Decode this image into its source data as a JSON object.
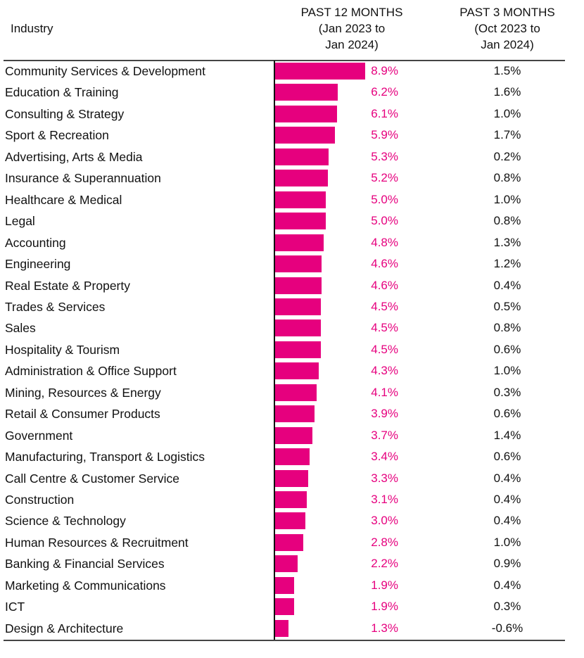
{
  "chart_data": {
    "type": "bar",
    "orientation": "horizontal",
    "headers": {
      "industry": "Industry",
      "past12_line1": "PAST 12 MONTHS",
      "past12_line2": "(Jan 2023 to",
      "past12_line3": "Jan 2024)",
      "past3_line1": "PAST 3 MONTHS",
      "past3_line2": "(Oct 2023 to",
      "past3_line3": "Jan 2024)"
    },
    "bar_color": "#E6007E",
    "label_color": "#E6007E",
    "xlim": [
      0,
      9
    ],
    "rows": [
      {
        "industry": "Community Services & Development",
        "past12": 8.9,
        "past12_label": "8.9%",
        "past3_label": "1.5%"
      },
      {
        "industry": "Education & Training",
        "past12": 6.2,
        "past12_label": "6.2%",
        "past3_label": "1.6%"
      },
      {
        "industry": "Consulting & Strategy",
        "past12": 6.1,
        "past12_label": "6.1%",
        "past3_label": "1.0%"
      },
      {
        "industry": "Sport & Recreation",
        "past12": 5.9,
        "past12_label": "5.9%",
        "past3_label": "1.7%"
      },
      {
        "industry": "Advertising, Arts & Media",
        "past12": 5.3,
        "past12_label": "5.3%",
        "past3_label": "0.2%"
      },
      {
        "industry": "Insurance & Superannuation",
        "past12": 5.2,
        "past12_label": "5.2%",
        "past3_label": "0.8%"
      },
      {
        "industry": "Healthcare & Medical",
        "past12": 5.0,
        "past12_label": "5.0%",
        "past3_label": "1.0%"
      },
      {
        "industry": "Legal",
        "past12": 5.0,
        "past12_label": "5.0%",
        "past3_label": "0.8%"
      },
      {
        "industry": "Accounting",
        "past12": 4.8,
        "past12_label": "4.8%",
        "past3_label": "1.3%"
      },
      {
        "industry": "Engineering",
        "past12": 4.6,
        "past12_label": "4.6%",
        "past3_label": "1.2%"
      },
      {
        "industry": "Real Estate & Property",
        "past12": 4.6,
        "past12_label": "4.6%",
        "past3_label": "0.4%"
      },
      {
        "industry": "Trades & Services",
        "past12": 4.5,
        "past12_label": "4.5%",
        "past3_label": "0.5%"
      },
      {
        "industry": "Sales",
        "past12": 4.5,
        "past12_label": "4.5%",
        "past3_label": "0.8%"
      },
      {
        "industry": "Hospitality & Tourism",
        "past12": 4.5,
        "past12_label": "4.5%",
        "past3_label": "0.6%"
      },
      {
        "industry": "Administration & Office Support",
        "past12": 4.3,
        "past12_label": "4.3%",
        "past3_label": "1.0%"
      },
      {
        "industry": "Mining, Resources & Energy",
        "past12": 4.1,
        "past12_label": "4.1%",
        "past3_label": "0.3%"
      },
      {
        "industry": "Retail & Consumer Products",
        "past12": 3.9,
        "past12_label": "3.9%",
        "past3_label": "0.6%"
      },
      {
        "industry": "Government",
        "past12": 3.7,
        "past12_label": "3.7%",
        "past3_label": "1.4%"
      },
      {
        "industry": "Manufacturing, Transport & Logistics",
        "past12": 3.4,
        "past12_label": "3.4%",
        "past3_label": "0.6%"
      },
      {
        "industry": "Call Centre & Customer Service",
        "past12": 3.3,
        "past12_label": "3.3%",
        "past3_label": "0.4%"
      },
      {
        "industry": "Construction",
        "past12": 3.1,
        "past12_label": "3.1%",
        "past3_label": "0.4%"
      },
      {
        "industry": "Science & Technology",
        "past12": 3.0,
        "past12_label": "3.0%",
        "past3_label": "0.4%"
      },
      {
        "industry": "Human Resources & Recruitment",
        "past12": 2.8,
        "past12_label": "2.8%",
        "past3_label": "1.0%"
      },
      {
        "industry": "Banking & Financial Services",
        "past12": 2.2,
        "past12_label": "2.2%",
        "past3_label": "0.9%"
      },
      {
        "industry": "Marketing & Communications",
        "past12": 1.9,
        "past12_label": "1.9%",
        "past3_label": "0.4%"
      },
      {
        "industry": "ICT",
        "past12": 1.9,
        "past12_label": "1.9%",
        "past3_label": "0.3%"
      },
      {
        "industry": "Design & Architecture",
        "past12": 1.3,
        "past12_label": "1.3%",
        "past3_label": "-0.6%"
      }
    ]
  }
}
